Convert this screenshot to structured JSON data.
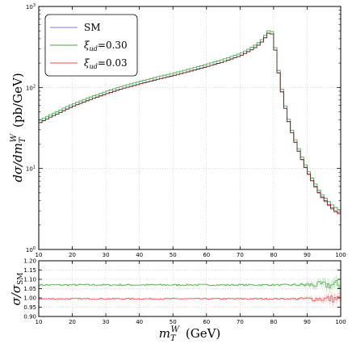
{
  "chart_data": [
    {
      "type": "line",
      "panel": "main",
      "drawstyle": "steps",
      "xlim": [
        10,
        100
      ],
      "ylim": [
        1,
        1000
      ],
      "yscale": "log",
      "grid": true,
      "legend_position": "upper-left",
      "xlabel": "",
      "ylabel_parts": {
        "pre": "dσ/dm",
        "sub": "T",
        "sup": "W",
        "unit": "(pb/GeV)"
      },
      "x_ticks": [
        10,
        20,
        30,
        40,
        50,
        60,
        70,
        80,
        90,
        100
      ],
      "y_ticks": [
        {
          "value": 1,
          "base": "10",
          "exp": "0"
        },
        {
          "value": 10,
          "base": "10",
          "exp": "1"
        },
        {
          "value": 100,
          "base": "10",
          "exp": "2"
        },
        {
          "value": 1000,
          "base": "10",
          "exp": "3"
        }
      ],
      "x": [
        10,
        12,
        14,
        16,
        18,
        20,
        25,
        30,
        35,
        40,
        45,
        50,
        55,
        60,
        65,
        70,
        72,
        74,
        76,
        77,
        78,
        79,
        80,
        81,
        82,
        83,
        84,
        85,
        86,
        87,
        88,
        89,
        90,
        91,
        92,
        93,
        94,
        95,
        96,
        97,
        98,
        99,
        100
      ],
      "series": [
        {
          "name": "SM",
          "name_display": "SM",
          "color": "#7777ff",
          "values": [
            36,
            40,
            44,
            48,
            53,
            58,
            70,
            83,
            97,
            110,
            125,
            140,
            158,
            180,
            207,
            245,
            270,
            300,
            345,
            385,
            440,
            500,
            420,
            200,
            115,
            68,
            45,
            32,
            24,
            18.5,
            14.5,
            11.5,
            9.3,
            7.8,
            6.5,
            5.5,
            4.7,
            4.2,
            3.8,
            3.4,
            3.1,
            2.9,
            2.75
          ]
        },
        {
          "name": "xi_ud=0.30",
          "name_display": {
            "sym": "ξ",
            "sub": "ud",
            "val": "=0.30"
          },
          "color": "#44aa44",
          "values": [
            38.5,
            43,
            47,
            51.5,
            57,
            62,
            75,
            89,
            104,
            118,
            134,
            150,
            169,
            193,
            222,
            262,
            289,
            321,
            369,
            412,
            471,
            535,
            449,
            214,
            123,
            73,
            48,
            34.2,
            25.7,
            19.8,
            15.5,
            12.3,
            10,
            8.3,
            7,
            5.9,
            5,
            4.5,
            4.1,
            3.7,
            3.4,
            3.2,
            3
          ]
        },
        {
          "name": "xi_ud=0.03",
          "name_display": {
            "sym": "ξ",
            "sub": "ud",
            "val": "=0.03"
          },
          "color": "#ff4444",
          "values": [
            35.8,
            39.8,
            43.8,
            47.8,
            52.7,
            57.7,
            69.7,
            82.6,
            96.5,
            109.5,
            124.4,
            139.3,
            157.2,
            179.1,
            206,
            243.8,
            268.7,
            298.5,
            343.3,
            383.1,
            437.8,
            497.5,
            417.9,
            199,
            114.4,
            67.7,
            44.8,
            31.8,
            23.9,
            18.4,
            14.4,
            11.4,
            9.2,
            7.7,
            6.4,
            5.4,
            4.6,
            4.1,
            3.7,
            3.3,
            3,
            2.8,
            2.7
          ]
        }
      ],
      "line_color": "#333333"
    },
    {
      "type": "line",
      "panel": "ratio",
      "drawstyle": "steps",
      "xlim": [
        10,
        100
      ],
      "ylim": [
        0.9,
        1.2
      ],
      "grid": true,
      "xlabel_parts": {
        "pre": "m",
        "sub": "T",
        "sup": "W",
        "unit": "(GeV)"
      },
      "ylabel_parts": {
        "pre": "σ/σ",
        "sub": "SM"
      },
      "x_ticks": [
        10,
        20,
        30,
        40,
        50,
        60,
        70,
        80,
        90,
        100
      ],
      "y_ticks": [
        "0.90",
        "0.95",
        "1.00",
        "1.05",
        "1.10",
        "1.15",
        "1.20"
      ],
      "series": [
        {
          "name": "xi_ud=0.30",
          "color": "#44aa44",
          "mean": 1.07,
          "noise_base": 0.004,
          "noise_tail": 0.025
        },
        {
          "name": "xi_ud=0.03",
          "color": "#ff4444",
          "mean": 0.995,
          "noise_base": 0.003,
          "noise_tail": 0.02
        }
      ]
    }
  ]
}
